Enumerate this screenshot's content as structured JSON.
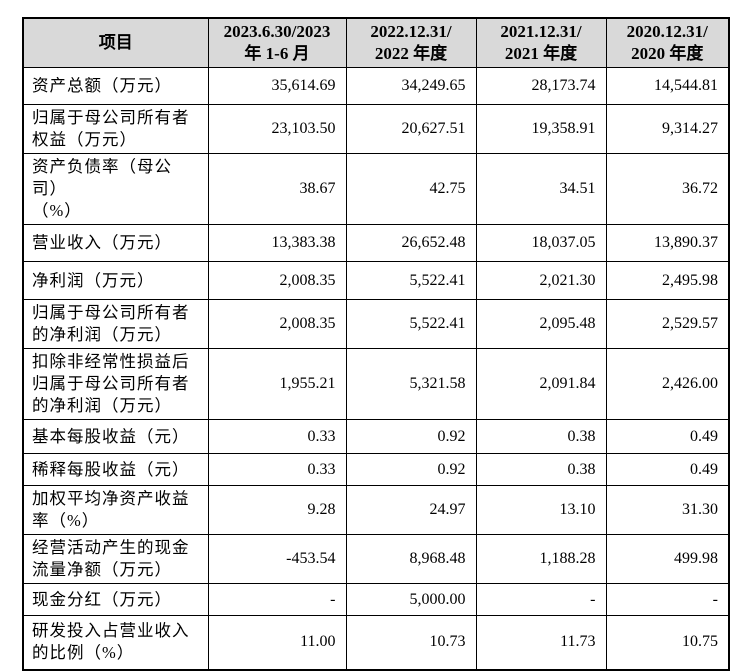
{
  "colors": {
    "header_bg": "#d9d9d9",
    "border": "#000000",
    "text": "#000000",
    "page_bg": "#ffffff"
  },
  "table": {
    "header": {
      "item": "项目",
      "periods": [
        "2023.6.30/2023\n年 1-6 月",
        "2022.12.31/\n2022 年度",
        "2021.12.31/\n2021 年度",
        "2020.12.31/\n2020 年度"
      ]
    },
    "rows": [
      {
        "label": "资产总额（万元）",
        "values": [
          "35,614.69",
          "34,249.65",
          "28,173.74",
          "14,544.81"
        ]
      },
      {
        "label": "归属于母公司所有者\n权益（万元）",
        "values": [
          "23,103.50",
          "20,627.51",
          "19,358.91",
          "9,314.27"
        ]
      },
      {
        "label": "资产负债率（母公司）\n（%）",
        "values": [
          "38.67",
          "42.75",
          "34.51",
          "36.72"
        ]
      },
      {
        "label": "营业收入（万元）",
        "values": [
          "13,383.38",
          "26,652.48",
          "18,037.05",
          "13,890.37"
        ]
      },
      {
        "label": "净利润（万元）",
        "values": [
          "2,008.35",
          "5,522.41",
          "2,021.30",
          "2,495.98"
        ]
      },
      {
        "label": "归属于母公司所有者\n的净利润（万元）",
        "values": [
          "2,008.35",
          "5,522.41",
          "2,095.48",
          "2,529.57"
        ]
      },
      {
        "label": "扣除非经常性损益后\n归属于母公司所有者\n的净利润（万元）",
        "values": [
          "1,955.21",
          "5,321.58",
          "2,091.84",
          "2,426.00"
        ]
      },
      {
        "label": "基本每股收益（元）",
        "values": [
          "0.33",
          "0.92",
          "0.38",
          "0.49"
        ]
      },
      {
        "label": "稀释每股收益（元）",
        "values": [
          "0.33",
          "0.92",
          "0.38",
          "0.49"
        ]
      },
      {
        "label": "加权平均净资产收益\n率（%）",
        "values": [
          "9.28",
          "24.97",
          "13.10",
          "31.30"
        ]
      },
      {
        "label": "经营活动产生的现金\n流量净额（万元）",
        "values": [
          "-453.54",
          "8,968.48",
          "1,188.28",
          "499.98"
        ]
      },
      {
        "label": "现金分红（万元）",
        "values": [
          "-",
          "5,000.00",
          "-",
          "-"
        ]
      },
      {
        "label": "研发投入占营业收入\n的比例（%）",
        "values": [
          "11.00",
          "10.73",
          "11.73",
          "10.75"
        ]
      }
    ]
  }
}
